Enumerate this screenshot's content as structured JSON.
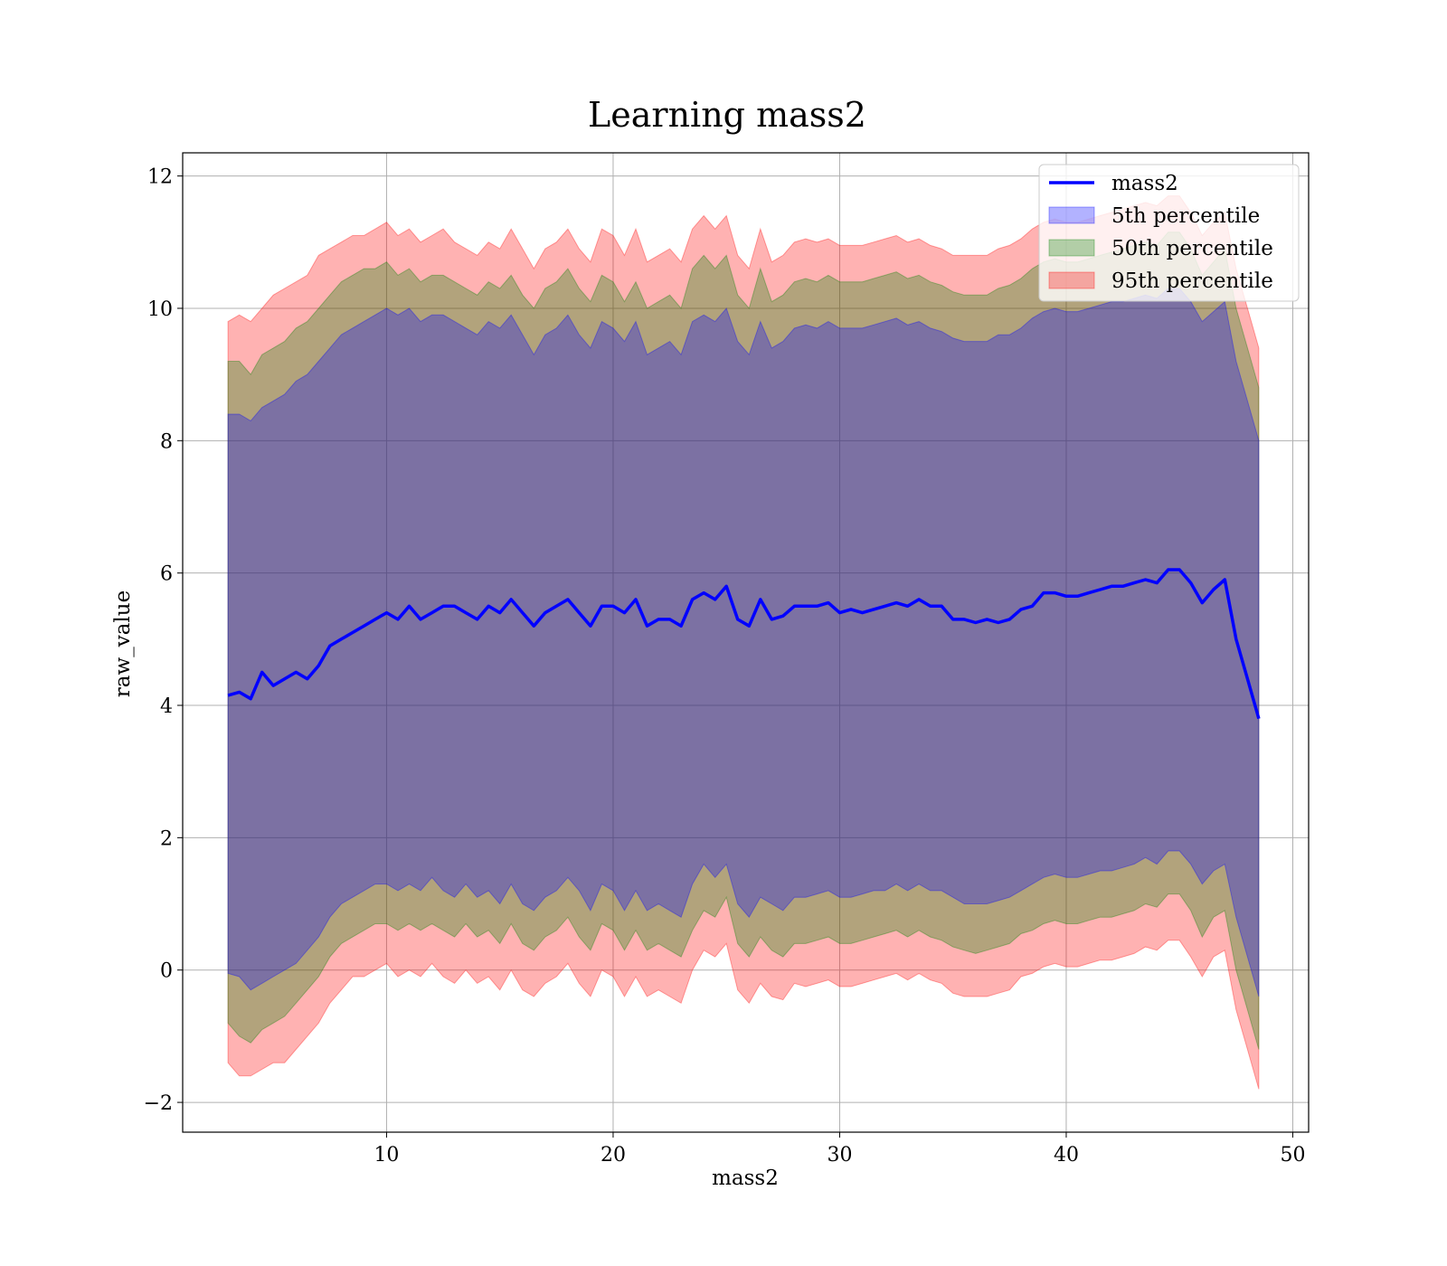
{
  "chart_data": {
    "type": "area",
    "title": "Learning mass2",
    "xlabel": "mass2",
    "ylabel": "raw_value",
    "xlim": [
      1,
      50.7
    ],
    "ylim": [
      -2.45,
      12.35
    ],
    "xticks": [
      10,
      20,
      30,
      40,
      50
    ],
    "yticks": [
      -2,
      0,
      2,
      4,
      6,
      8,
      10,
      12
    ],
    "ytick_labels": [
      "−2",
      "0",
      "2",
      "4",
      "6",
      "8",
      "10",
      "12"
    ],
    "grid": true,
    "legend_position": "top-right",
    "legend": [
      {
        "label": "mass2",
        "kind": "line",
        "color": "#0000ff"
      },
      {
        "label": "5th percentile",
        "kind": "patch",
        "color": "#0000ff"
      },
      {
        "label": "50th percentile",
        "kind": "patch",
        "color": "#008000"
      },
      {
        "label": "95th percentile",
        "kind": "patch",
        "color": "#ff0000"
      }
    ],
    "x": [
      3,
      3.5,
      4,
      4.5,
      5,
      5.5,
      6,
      6.5,
      7,
      7.5,
      8,
      8.5,
      9,
      9.5,
      10,
      10.5,
      11,
      11.5,
      12,
      12.5,
      13,
      13.5,
      14,
      14.5,
      15,
      15.5,
      16,
      16.5,
      17,
      17.5,
      18,
      18.5,
      19,
      19.5,
      20,
      20.5,
      21,
      21.5,
      22,
      22.5,
      23,
      23.5,
      24,
      24.5,
      25,
      25.5,
      26,
      26.5,
      27,
      27.5,
      28,
      28.5,
      29,
      29.5,
      30,
      30.5,
      31,
      31.5,
      32,
      32.5,
      33,
      33.5,
      34,
      34.5,
      35,
      35.5,
      36,
      36.5,
      37,
      37.5,
      38,
      38.5,
      39,
      39.5,
      40,
      40.5,
      41,
      41.5,
      42,
      42.5,
      43,
      43.5,
      44,
      44.5,
      45,
      45.5,
      46,
      46.5,
      47,
      47.5,
      48,
      48.5
    ],
    "series": [
      {
        "name": "mass2",
        "kind": "line",
        "color": "#0000ff",
        "values": [
          4.15,
          4.2,
          4.1,
          4.5,
          4.3,
          4.4,
          4.5,
          4.4,
          4.6,
          4.9,
          5.0,
          5.1,
          5.2,
          5.3,
          5.4,
          5.3,
          5.5,
          5.3,
          5.4,
          5.5,
          5.5,
          5.4,
          5.3,
          5.5,
          5.4,
          5.6,
          5.4,
          5.2,
          5.4,
          5.5,
          5.6,
          5.4,
          5.2,
          5.5,
          5.5,
          5.4,
          5.6,
          5.2,
          5.3,
          5.3,
          5.2,
          5.6,
          5.7,
          5.6,
          5.8,
          5.3,
          5.2,
          5.6,
          5.3,
          5.35,
          5.5,
          5.5,
          5.5,
          5.55,
          5.4,
          5.45,
          5.4,
          5.45,
          5.5,
          5.55,
          5.5,
          5.6,
          5.5,
          5.5,
          5.3,
          5.3,
          5.25,
          5.3,
          5.25,
          5.3,
          5.45,
          5.5,
          5.7,
          5.7,
          5.65,
          5.65,
          5.7,
          5.75,
          5.8,
          5.8,
          5.85,
          5.9,
          5.85,
          6.05,
          6.05,
          5.85,
          5.55,
          5.75,
          5.9,
          5.0,
          4.4,
          3.8
        ]
      },
      {
        "name": "5th percentile",
        "kind": "band",
        "color": "#0000ff",
        "lower": [
          -0.05,
          -0.1,
          -0.3,
          -0.2,
          -0.1,
          0.0,
          0.1,
          0.3,
          0.5,
          0.8,
          1.0,
          1.1,
          1.2,
          1.3,
          1.3,
          1.2,
          1.3,
          1.2,
          1.4,
          1.2,
          1.1,
          1.3,
          1.1,
          1.2,
          1.0,
          1.3,
          1.0,
          0.9,
          1.1,
          1.2,
          1.4,
          1.2,
          0.9,
          1.3,
          1.2,
          0.9,
          1.2,
          0.9,
          1.0,
          0.9,
          0.8,
          1.3,
          1.6,
          1.4,
          1.6,
          1.0,
          0.8,
          1.1,
          1.0,
          0.9,
          1.1,
          1.1,
          1.15,
          1.2,
          1.1,
          1.1,
          1.15,
          1.2,
          1.2,
          1.3,
          1.2,
          1.3,
          1.2,
          1.2,
          1.1,
          1.0,
          1.0,
          1.0,
          1.05,
          1.1,
          1.2,
          1.3,
          1.4,
          1.45,
          1.4,
          1.4,
          1.45,
          1.5,
          1.5,
          1.55,
          1.6,
          1.7,
          1.6,
          1.8,
          1.8,
          1.6,
          1.3,
          1.5,
          1.6,
          0.8,
          0.2,
          -0.4
        ],
        "upper": [
          8.4,
          8.4,
          8.3,
          8.5,
          8.6,
          8.7,
          8.9,
          9.0,
          9.2,
          9.4,
          9.6,
          9.7,
          9.8,
          9.9,
          10.0,
          9.9,
          10.0,
          9.8,
          9.9,
          9.9,
          9.8,
          9.7,
          9.6,
          9.8,
          9.7,
          9.9,
          9.6,
          9.3,
          9.6,
          9.7,
          9.9,
          9.6,
          9.4,
          9.8,
          9.7,
          9.5,
          9.8,
          9.3,
          9.4,
          9.5,
          9.3,
          9.8,
          9.9,
          9.8,
          10.0,
          9.5,
          9.3,
          9.8,
          9.4,
          9.5,
          9.7,
          9.75,
          9.7,
          9.8,
          9.7,
          9.7,
          9.7,
          9.75,
          9.8,
          9.85,
          9.75,
          9.8,
          9.7,
          9.65,
          9.55,
          9.5,
          9.5,
          9.5,
          9.6,
          9.6,
          9.7,
          9.85,
          9.95,
          10.0,
          9.95,
          9.95,
          10.0,
          10.05,
          10.1,
          10.1,
          10.15,
          10.2,
          10.15,
          10.3,
          10.3,
          10.1,
          9.8,
          9.95,
          10.1,
          9.2,
          8.6,
          8.0
        ]
      },
      {
        "name": "50th percentile",
        "kind": "band",
        "color": "#008000",
        "lower": [
          -0.8,
          -1.0,
          -1.1,
          -0.9,
          -0.8,
          -0.7,
          -0.5,
          -0.3,
          -0.1,
          0.2,
          0.4,
          0.5,
          0.6,
          0.7,
          0.7,
          0.6,
          0.7,
          0.6,
          0.7,
          0.6,
          0.5,
          0.7,
          0.5,
          0.6,
          0.4,
          0.7,
          0.4,
          0.3,
          0.5,
          0.6,
          0.8,
          0.5,
          0.3,
          0.7,
          0.6,
          0.3,
          0.6,
          0.3,
          0.4,
          0.3,
          0.2,
          0.6,
          0.9,
          0.8,
          1.1,
          0.4,
          0.2,
          0.5,
          0.3,
          0.2,
          0.4,
          0.4,
          0.45,
          0.5,
          0.4,
          0.4,
          0.45,
          0.5,
          0.55,
          0.6,
          0.5,
          0.6,
          0.5,
          0.45,
          0.35,
          0.3,
          0.25,
          0.3,
          0.35,
          0.4,
          0.55,
          0.6,
          0.7,
          0.75,
          0.7,
          0.7,
          0.75,
          0.8,
          0.8,
          0.85,
          0.9,
          1.0,
          0.95,
          1.15,
          1.15,
          0.9,
          0.5,
          0.8,
          0.9,
          0.0,
          -0.6,
          -1.2
        ],
        "upper": [
          9.2,
          9.2,
          9.0,
          9.3,
          9.4,
          9.5,
          9.7,
          9.8,
          10.0,
          10.2,
          10.4,
          10.5,
          10.6,
          10.6,
          10.7,
          10.5,
          10.6,
          10.4,
          10.5,
          10.5,
          10.4,
          10.3,
          10.2,
          10.4,
          10.3,
          10.5,
          10.2,
          10.0,
          10.3,
          10.4,
          10.6,
          10.3,
          10.1,
          10.5,
          10.4,
          10.1,
          10.4,
          10.0,
          10.1,
          10.2,
          10.0,
          10.6,
          10.8,
          10.6,
          10.8,
          10.2,
          10.0,
          10.6,
          10.1,
          10.2,
          10.4,
          10.45,
          10.4,
          10.5,
          10.4,
          10.4,
          10.4,
          10.45,
          10.5,
          10.55,
          10.45,
          10.5,
          10.4,
          10.35,
          10.25,
          10.2,
          10.2,
          10.2,
          10.3,
          10.35,
          10.45,
          10.6,
          10.7,
          10.75,
          10.7,
          10.7,
          10.75,
          10.8,
          10.85,
          10.9,
          10.95,
          11.0,
          10.95,
          11.15,
          11.15,
          10.9,
          10.5,
          10.7,
          10.9,
          10.0,
          9.4,
          8.8
        ]
      },
      {
        "name": "95th percentile",
        "kind": "band",
        "color": "#ff0000",
        "lower": [
          -1.4,
          -1.6,
          -1.6,
          -1.5,
          -1.4,
          -1.4,
          -1.2,
          -1.0,
          -0.8,
          -0.5,
          -0.3,
          -0.1,
          -0.1,
          0.0,
          0.1,
          -0.1,
          0.0,
          -0.1,
          0.1,
          -0.1,
          -0.2,
          0.0,
          -0.2,
          -0.1,
          -0.3,
          0.0,
          -0.3,
          -0.4,
          -0.2,
          -0.1,
          0.1,
          -0.2,
          -0.4,
          0.0,
          -0.1,
          -0.4,
          -0.1,
          -0.4,
          -0.3,
          -0.4,
          -0.5,
          0.0,
          0.3,
          0.2,
          0.4,
          -0.3,
          -0.5,
          -0.2,
          -0.4,
          -0.45,
          -0.2,
          -0.25,
          -0.2,
          -0.15,
          -0.25,
          -0.25,
          -0.2,
          -0.15,
          -0.1,
          -0.05,
          -0.15,
          -0.05,
          -0.15,
          -0.2,
          -0.35,
          -0.4,
          -0.4,
          -0.4,
          -0.35,
          -0.3,
          -0.1,
          -0.05,
          0.05,
          0.1,
          0.05,
          0.05,
          0.1,
          0.15,
          0.15,
          0.2,
          0.25,
          0.35,
          0.3,
          0.45,
          0.45,
          0.2,
          -0.1,
          0.2,
          0.3,
          -0.6,
          -1.2,
          -1.8
        ],
        "upper": [
          9.8,
          9.9,
          9.8,
          10.0,
          10.2,
          10.3,
          10.4,
          10.5,
          10.8,
          10.9,
          11.0,
          11.1,
          11.1,
          11.2,
          11.3,
          11.1,
          11.2,
          11.0,
          11.1,
          11.2,
          11.0,
          10.9,
          10.8,
          11.0,
          10.9,
          11.2,
          10.9,
          10.6,
          10.9,
          11.0,
          11.2,
          10.9,
          10.7,
          11.2,
          11.1,
          10.8,
          11.2,
          10.7,
          10.8,
          10.9,
          10.7,
          11.2,
          11.4,
          11.2,
          11.4,
          10.8,
          10.6,
          11.2,
          10.7,
          10.8,
          11.0,
          11.05,
          11.0,
          11.05,
          10.95,
          10.95,
          10.95,
          11.0,
          11.05,
          11.1,
          11.0,
          11.05,
          10.95,
          10.9,
          10.8,
          10.8,
          10.8,
          10.8,
          10.9,
          10.95,
          11.05,
          11.2,
          11.3,
          11.35,
          11.3,
          11.3,
          11.35,
          11.4,
          11.45,
          11.5,
          11.55,
          11.6,
          11.55,
          11.7,
          11.7,
          11.45,
          11.1,
          11.3,
          11.45,
          10.6,
          10.0,
          9.4
        ]
      }
    ]
  }
}
